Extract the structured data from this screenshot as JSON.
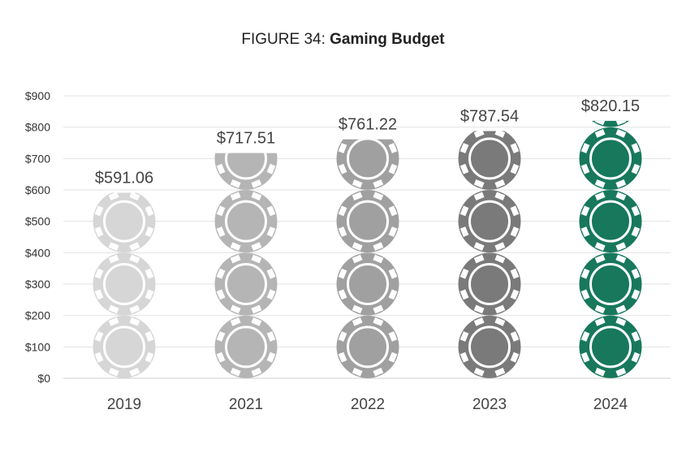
{
  "figure": {
    "title_prefix": "FIGURE 34: ",
    "title_bold": "Gaming Budget"
  },
  "chart_data": {
    "type": "bar",
    "title": "FIGURE 34: Gaming Budget",
    "categories": [
      "2019",
      "2021",
      "2022",
      "2023",
      "2024"
    ],
    "values": [
      591.06,
      717.51,
      761.22,
      787.54,
      820.15
    ],
    "value_labels": [
      "$591.06",
      "$717.51",
      "$761.22",
      "$787.54",
      "$820.15"
    ],
    "y_ticks": [
      "$0",
      "$100",
      "$200",
      "$300",
      "$400",
      "$500",
      "$600",
      "$700",
      "$800",
      "$900"
    ],
    "ylim": [
      0,
      900
    ],
    "grid": true,
    "xlabel": "",
    "ylabel": "",
    "bar_style": "stacked poker chips",
    "colors": [
      "#d6d6d6",
      "#b5b5b5",
      "#a0a0a0",
      "#7a7a7a",
      "#17785c"
    ]
  }
}
